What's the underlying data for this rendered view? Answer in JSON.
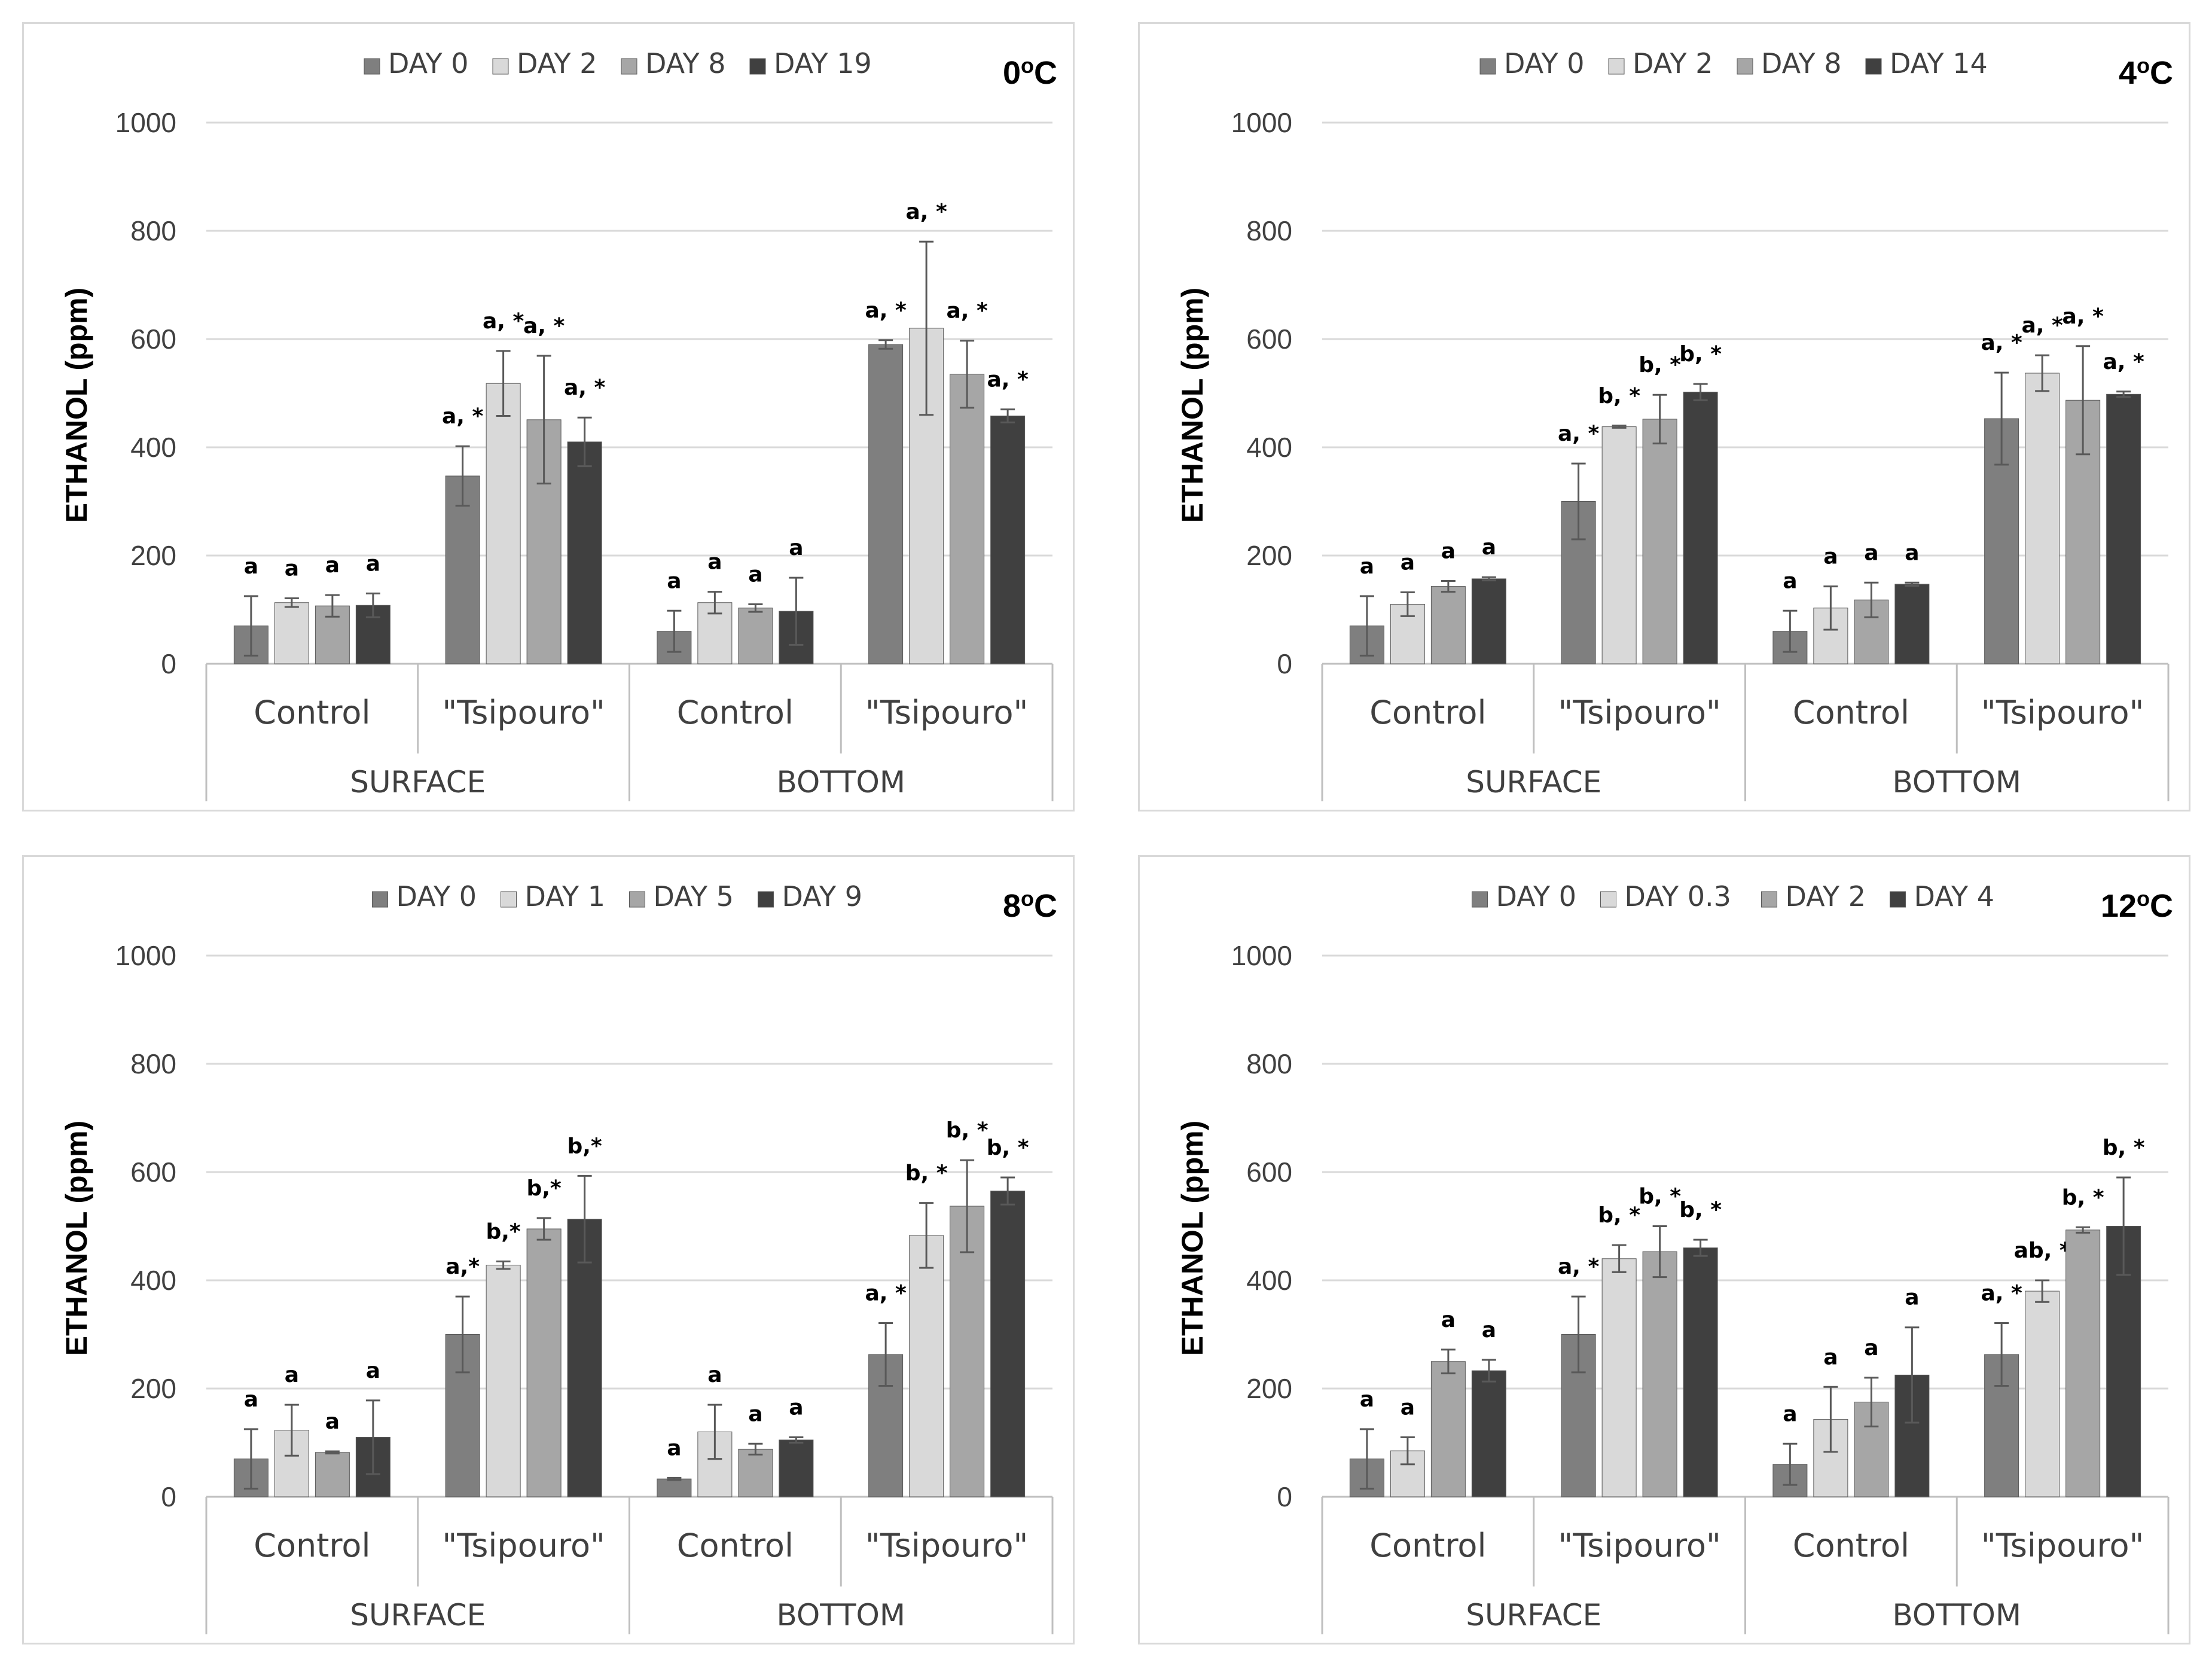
{
  "chart_data": [
    {
      "type": "bar",
      "temperature": "0",
      "temperature_unit": "oC",
      "ylabel": "ETHANOL (ppm)",
      "ylim": [
        0,
        1000
      ],
      "yticks": [
        0,
        200,
        400,
        600,
        800,
        1000
      ],
      "groups": [
        "SURFACE",
        "BOTTOM"
      ],
      "categories": [
        "Control",
        "\"Tsipouro\"",
        "Control",
        "\"Tsipouro\""
      ],
      "series": [
        {
          "name": "DAY 0",
          "color": "#7f7f7f",
          "values": [
            70,
            347,
            60,
            590
          ],
          "errors": [
            55,
            55,
            38,
            8
          ],
          "labels": [
            "a",
            "a, *",
            "a",
            "a, *"
          ]
        },
        {
          "name": "DAY 2",
          "color": "#d9d9d9",
          "values": [
            113,
            518,
            113,
            620
          ],
          "errors": [
            8,
            60,
            20,
            160
          ],
          "labels": [
            "a",
            "a, *",
            "a",
            "a, *"
          ]
        },
        {
          "name": "DAY 8",
          "color": "#a6a6a6",
          "values": [
            107,
            451,
            103,
            535
          ],
          "errors": [
            20,
            118,
            7,
            62
          ],
          "labels": [
            "a",
            "a, *",
            "a",
            "a, *"
          ]
        },
        {
          "name": "DAY 19",
          "color": "#404040",
          "values": [
            108,
            410,
            97,
            458
          ],
          "errors": [
            22,
            45,
            62,
            12
          ],
          "labels": [
            "a",
            "a, *",
            "a",
            "a, *"
          ]
        }
      ]
    },
    {
      "type": "bar",
      "temperature": "4",
      "temperature_unit": "oC",
      "ylabel": "ETHANOL (ppm)",
      "ylim": [
        0,
        1000
      ],
      "yticks": [
        0,
        200,
        400,
        600,
        800,
        1000
      ],
      "groups": [
        "SURFACE",
        "BOTTOM"
      ],
      "categories": [
        "Control",
        "\"Tsipouro\"",
        "Control",
        "\"Tsipouro\""
      ],
      "series": [
        {
          "name": "DAY 0",
          "color": "#7f7f7f",
          "values": [
            70,
            300,
            60,
            453
          ],
          "errors": [
            55,
            70,
            38,
            85
          ],
          "labels": [
            "a",
            "a, *",
            "a",
            "a, *"
          ]
        },
        {
          "name": "DAY 2",
          "color": "#d9d9d9",
          "values": [
            110,
            438,
            103,
            537
          ],
          "errors": [
            22,
            2,
            40,
            33
          ],
          "labels": [
            "a",
            "b, *",
            "a",
            "a, *"
          ]
        },
        {
          "name": "DAY 8",
          "color": "#a6a6a6",
          "values": [
            143,
            452,
            118,
            487
          ],
          "errors": [
            10,
            45,
            32,
            100
          ],
          "labels": [
            "a",
            "b, *",
            "a",
            "a, *"
          ]
        },
        {
          "name": "DAY 14",
          "color": "#404040",
          "values": [
            157,
            502,
            147,
            498
          ],
          "errors": [
            3,
            15,
            3,
            5
          ],
          "labels": [
            "a",
            "b, *",
            "a",
            "a, *"
          ]
        }
      ]
    },
    {
      "type": "bar",
      "temperature": "8",
      "temperature_unit": "oC",
      "ylabel": "ETHANOL (ppm)",
      "ylim": [
        0,
        1000
      ],
      "yticks": [
        0,
        200,
        400,
        600,
        800,
        1000
      ],
      "groups": [
        "SURFACE",
        "BOTTOM"
      ],
      "categories": [
        "Control",
        "\"Tsipouro\"",
        "Control",
        "\"Tsipouro\""
      ],
      "series": [
        {
          "name": "DAY 0",
          "color": "#7f7f7f",
          "values": [
            70,
            300,
            33,
            263
          ],
          "errors": [
            55,
            70,
            2,
            58
          ],
          "labels": [
            "a",
            "a,*",
            "a",
            "a, *"
          ]
        },
        {
          "name": "DAY 1",
          "color": "#d9d9d9",
          "values": [
            123,
            428,
            120,
            483
          ],
          "errors": [
            47,
            7,
            50,
            60
          ],
          "labels": [
            "a",
            "b,*",
            "a",
            "b, *"
          ]
        },
        {
          "name": "DAY 5",
          "color": "#a6a6a6",
          "values": [
            82,
            495,
            88,
            537
          ],
          "errors": [
            2,
            20,
            10,
            85
          ],
          "labels": [
            "a",
            "b,*",
            "a",
            "b, *"
          ]
        },
        {
          "name": "DAY 9",
          "color": "#404040",
          "values": [
            110,
            513,
            105,
            565
          ],
          "errors": [
            68,
            80,
            5,
            25
          ],
          "labels": [
            "a",
            "b,*",
            "a",
            "b, *"
          ]
        }
      ]
    },
    {
      "type": "bar",
      "temperature": "12",
      "temperature_unit": "oC",
      "ylabel": "ETHANOL (ppm)",
      "ylim": [
        0,
        1000
      ],
      "yticks": [
        0,
        200,
        400,
        600,
        800,
        1000
      ],
      "groups": [
        "SURFACE",
        "BOTTOM"
      ],
      "categories": [
        "Control",
        "\"Tsipouro\"",
        "Control",
        "\"Tsipouro\""
      ],
      "series": [
        {
          "name": "DAY 0",
          "color": "#7f7f7f",
          "values": [
            70,
            300,
            60,
            263
          ],
          "errors": [
            55,
            70,
            38,
            58
          ],
          "labels": [
            "a",
            "a, *",
            "a",
            "a, *"
          ]
        },
        {
          "name": "DAY 0.3",
          "color": "#d9d9d9",
          "values": [
            85,
            440,
            143,
            380
          ],
          "errors": [
            25,
            25,
            60,
            20
          ],
          "labels": [
            "a",
            "b, *",
            "a",
            "ab, *"
          ]
        },
        {
          "name": "DAY 2",
          "color": "#a6a6a6",
          "values": [
            250,
            453,
            175,
            493
          ],
          "errors": [
            22,
            47,
            45,
            5
          ],
          "labels": [
            "a",
            "b, *",
            "a",
            "b, *"
          ]
        },
        {
          "name": "DAY 4",
          "color": "#404040",
          "values": [
            233,
            460,
            225,
            500
          ],
          "errors": [
            20,
            15,
            88,
            90
          ],
          "labels": [
            "a",
            "b, *",
            "a",
            "b, *"
          ]
        }
      ]
    }
  ]
}
